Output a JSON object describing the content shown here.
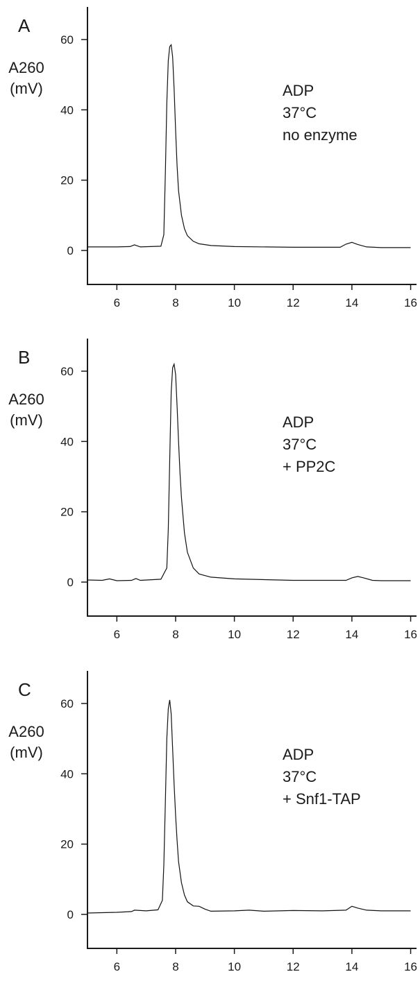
{
  "chart_data": [
    {
      "type": "line",
      "panel": "A",
      "ylabel_lines": [
        "A260",
        "(mV)"
      ],
      "annotation": [
        "ADP",
        "37°C",
        "no enzyme"
      ],
      "xlim": [
        5,
        16.2
      ],
      "ylim": [
        -10,
        70
      ],
      "xticks": [
        6,
        8,
        10,
        12,
        14,
        16
      ],
      "yticks": [
        0,
        20,
        40,
        60
      ],
      "series": [
        {
          "x": [
            5.0,
            6.0,
            6.45,
            6.6,
            6.8,
            7.5,
            7.6,
            7.65,
            7.7,
            7.75,
            7.8,
            7.85,
            7.9,
            7.95,
            8.0,
            8.05,
            8.1,
            8.2,
            8.3,
            8.4,
            8.6,
            8.8,
            9.2,
            10.0,
            12.0,
            13.6,
            13.8,
            14.0,
            14.2,
            14.5,
            15.0,
            16.0
          ],
          "y": [
            1.0,
            1.0,
            1.1,
            1.6,
            1.0,
            1.2,
            4.5,
            22.0,
            42.0,
            54.0,
            58.0,
            58.5,
            55.0,
            46.0,
            34.0,
            24.0,
            17.0,
            10.0,
            6.2,
            4.2,
            2.6,
            1.9,
            1.4,
            1.1,
            0.9,
            0.9,
            1.8,
            2.3,
            1.7,
            1.0,
            0.8,
            0.8
          ]
        }
      ]
    },
    {
      "type": "line",
      "panel": "B",
      "ylabel_lines": [
        "A260",
        "(mV)"
      ],
      "annotation": [
        "ADP",
        "37°C",
        "+ PP2C"
      ],
      "xlim": [
        5,
        16.2
      ],
      "ylim": [
        -10,
        70
      ],
      "xticks": [
        6,
        8,
        10,
        12,
        14,
        16
      ],
      "yticks": [
        0,
        20,
        40,
        60
      ],
      "series": [
        {
          "x": [
            5.0,
            5.5,
            5.75,
            6.0,
            6.5,
            6.65,
            6.8,
            7.5,
            7.7,
            7.75,
            7.8,
            7.85,
            7.9,
            7.95,
            8.0,
            8.05,
            8.1,
            8.15,
            8.2,
            8.3,
            8.4,
            8.6,
            8.8,
            9.2,
            10.0,
            12.0,
            13.8,
            14.0,
            14.2,
            14.4,
            14.7,
            15.0,
            16.0
          ],
          "y": [
            0.6,
            0.5,
            0.9,
            0.4,
            0.5,
            1.0,
            0.5,
            0.8,
            4.0,
            15.0,
            35.0,
            54.0,
            61.0,
            62.0,
            59.0,
            50.0,
            40.0,
            31.0,
            24.0,
            14.0,
            8.5,
            4.0,
            2.3,
            1.4,
            0.9,
            0.5,
            0.5,
            1.2,
            1.6,
            1.2,
            0.5,
            0.4,
            0.4
          ]
        }
      ]
    },
    {
      "type": "line",
      "panel": "C",
      "ylabel_lines": [
        "A260",
        "(mV)"
      ],
      "annotation": [
        "ADP",
        "37°C",
        "+ Snf1-TAP"
      ],
      "xlim": [
        5,
        16.2
      ],
      "ylim": [
        -10,
        70
      ],
      "xticks": [
        6,
        8,
        10,
        12,
        14,
        16
      ],
      "yticks": [
        0,
        20,
        40,
        60
      ],
      "series": [
        {
          "x": [
            5.0,
            5.5,
            6.0,
            6.5,
            6.6,
            7.0,
            7.4,
            7.55,
            7.6,
            7.65,
            7.7,
            7.75,
            7.8,
            7.85,
            7.9,
            7.95,
            8.0,
            8.05,
            8.1,
            8.2,
            8.3,
            8.4,
            8.6,
            8.8,
            9.0,
            9.2,
            10.0,
            10.5,
            11.0,
            12.0,
            13.0,
            13.8,
            14.0,
            14.2,
            14.5,
            15.0,
            16.0
          ],
          "y": [
            0.4,
            0.5,
            0.6,
            0.8,
            1.2,
            1.0,
            1.3,
            4.0,
            14.0,
            32.0,
            50.0,
            58.5,
            61.0,
            57.0,
            47.0,
            37.0,
            28.0,
            21.0,
            15.0,
            9.0,
            5.5,
            3.6,
            2.4,
            2.3,
            1.5,
            0.9,
            1.0,
            1.2,
            0.9,
            1.1,
            1.0,
            1.2,
            2.3,
            1.8,
            1.2,
            1.0,
            1.0
          ]
        }
      ]
    }
  ]
}
